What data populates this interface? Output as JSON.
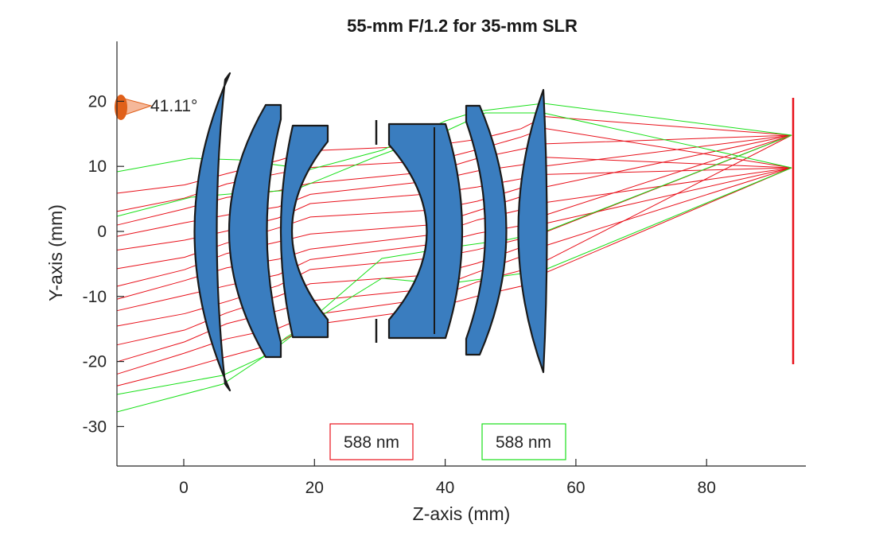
{
  "title": "55-mm F/1.2 for 35-mm SLR",
  "x_axis_label": "Z-axis (mm)",
  "y_axis_label": "Y-axis (mm)",
  "x_ticks": [
    0,
    20,
    40,
    60,
    80
  ],
  "y_ticks": [
    20,
    10,
    0,
    -10,
    -20,
    -30
  ],
  "x_range": [
    -10,
    95
  ],
  "y_range": [
    -36,
    29
  ],
  "field_angle_label": "41.11°",
  "legend": [
    {
      "label": "588 nm",
      "color": "#e8101a"
    },
    {
      "label": "588 nm",
      "color": "#19e019"
    }
  ],
  "colors": {
    "lens_fill": "#3a7dbf",
    "lens_edge": "#1a1a1a",
    "ray_red": "#e8101a",
    "ray_green": "#19e019",
    "image_plane": "#e8101a",
    "field_marker": "#f5b89a",
    "field_marker_edge": "#e0601a"
  },
  "image_plane_z": 93
}
